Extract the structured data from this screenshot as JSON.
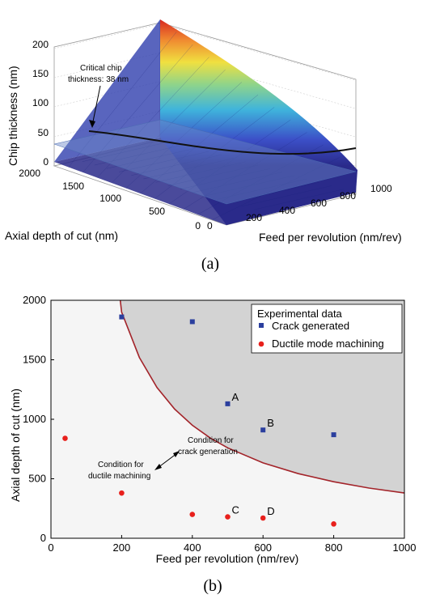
{
  "chart_data": [
    {
      "type": "surface",
      "panel_label": "(a)",
      "zlabel": "Chip thickness (nm)",
      "ylabel": "Axial depth of cut (nm)",
      "xlabel": "Feed per revolution (nm/rev)",
      "z_ticks": [
        "0",
        "50",
        "100",
        "150",
        "200"
      ],
      "y_ticks": [
        "0",
        "500",
        "1000",
        "1500",
        "2000"
      ],
      "x_ticks": [
        "0",
        "200",
        "400",
        "600",
        "800",
        "1000"
      ],
      "xlim": [
        0,
        1000
      ],
      "ylim": [
        0,
        2000
      ],
      "zlim": [
        0,
        200
      ],
      "annotation": [
        "Critical chip",
        "thickness: 38 nm"
      ],
      "critical_plane_z": 38,
      "colormap": "jet",
      "grid": true
    },
    {
      "type": "scatter",
      "panel_label": "(b)",
      "xlabel": "Feed per revolution (nm/rev)",
      "ylabel": "Axial depth of cut (nm)",
      "xlim": [
        0,
        1000
      ],
      "ylim": [
        0,
        2000
      ],
      "x_ticks": [
        "0",
        "200",
        "400",
        "600",
        "800",
        "1000"
      ],
      "y_ticks": [
        "0",
        "500",
        "1000",
        "1500",
        "2000"
      ],
      "legend_title": "Experimental data",
      "legend_position": "top-right",
      "series": [
        {
          "name": "Crack generated",
          "marker": "square",
          "color": "#2b3f9e",
          "points": [
            {
              "x": 200,
              "y": 1860,
              "label": ""
            },
            {
              "x": 400,
              "y": 1820,
              "label": ""
            },
            {
              "x": 500,
              "y": 1130,
              "label": "A"
            },
            {
              "x": 600,
              "y": 910,
              "label": "B"
            },
            {
              "x": 800,
              "y": 870,
              "label": ""
            }
          ]
        },
        {
          "name": "Ductile mode machining",
          "marker": "circle",
          "color": "#e8201c",
          "points": [
            {
              "x": 40,
              "y": 840,
              "label": ""
            },
            {
              "x": 200,
              "y": 380,
              "label": ""
            },
            {
              "x": 400,
              "y": 200,
              "label": ""
            },
            {
              "x": 500,
              "y": 180,
              "label": "C"
            },
            {
              "x": 600,
              "y": 170,
              "label": "D"
            },
            {
              "x": 800,
              "y": 120,
              "label": ""
            }
          ]
        }
      ],
      "boundary_curve": {
        "color": "#a3242a",
        "region_color": "#d3d3d3",
        "points": [
          [
            196,
            2000
          ],
          [
            200,
            1900
          ],
          [
            250,
            1520
          ],
          [
            300,
            1267
          ],
          [
            350,
            1086
          ],
          [
            400,
            950
          ],
          [
            450,
            844
          ],
          [
            500,
            760
          ],
          [
            600,
            633
          ],
          [
            700,
            543
          ],
          [
            800,
            475
          ],
          [
            900,
            422
          ],
          [
            1000,
            380
          ]
        ]
      },
      "annotations": [
        {
          "text": [
            "Condition for",
            "crack generation"
          ]
        },
        {
          "text": [
            "Condition for",
            "ductile machining"
          ]
        }
      ]
    }
  ]
}
